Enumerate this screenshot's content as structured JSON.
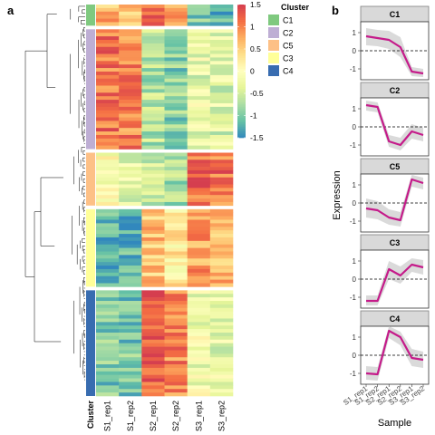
{
  "panel_labels": {
    "a": "a",
    "b": "b"
  },
  "colors": {
    "C1": "#7fc97f",
    "C2": "#beaed4",
    "C5": "#fdc086",
    "C3": "#ffff99",
    "C4": "#386cb0",
    "line": "#c51b8a",
    "ribbon": "#d3d3d3",
    "strip": "#d9d9d9",
    "strip_border": "#7f7f7f",
    "palette": [
      "#3288bd",
      "#66c2a5",
      "#abdda4",
      "#e6f598",
      "#ffffbf",
      "#fee08b",
      "#fdae61",
      "#f46d43",
      "#d53e4f"
    ]
  },
  "heatmap": {
    "cluster_column_label": "Cluster",
    "column_labels": [
      "S1_rep1",
      "S1_rep2",
      "S2_rep1",
      "S2_rep2",
      "S3_rep1",
      "S3_rep2"
    ],
    "legend": {
      "title": "Cluster",
      "entries": [
        {
          "name": "C1",
          "color_key": "C1"
        },
        {
          "name": "C2",
          "color_key": "C2"
        },
        {
          "name": "C5",
          "color_key": "C5"
        },
        {
          "name": "C3",
          "color_key": "C3"
        },
        {
          "name": "C4",
          "color_key": "C4"
        }
      ]
    },
    "colorbar": {
      "ticks": [
        "1.5",
        "1",
        "0.5",
        "0",
        "-0.5",
        "-1",
        "-1.5"
      ],
      "min": -1.5,
      "max": 1.5
    }
  },
  "line_panel": {
    "ylabel": "Expression",
    "xlabel": "Sample"
  },
  "chart_data": [
    {
      "type": "heatmap",
      "x": [
        "S1_rep1",
        "S1_rep2",
        "S2_rep1",
        "S2_rep2",
        "S3_rep1",
        "S3_rep2"
      ],
      "value_range": [
        -1.5,
        1.5
      ],
      "blocks": [
        {
          "cluster": "C1",
          "rows": 6,
          "means": [
            0.7,
            0.5,
            1.1,
            0.8,
            -1.0,
            -1.2
          ]
        },
        {
          "cluster": "C2",
          "rows": 34,
          "means": [
            1.1,
            1.0,
            -0.7,
            -0.9,
            -0.3,
            -0.4
          ]
        },
        {
          "cluster": "C5",
          "rows": 15,
          "means": [
            -0.1,
            -0.3,
            -0.6,
            -0.8,
            1.2,
            1.1
          ]
        },
        {
          "cluster": "C3",
          "rows": 22,
          "means": [
            -1.2,
            -1.2,
            0.6,
            0.2,
            0.8,
            0.7
          ]
        },
        {
          "cluster": "C4",
          "rows": 30,
          "means": [
            -1.0,
            -1.0,
            1.3,
            1.0,
            -0.2,
            -0.3
          ]
        }
      ]
    },
    {
      "type": "line",
      "categories": [
        "S1_rep1",
        "S1_rep2",
        "S2_rep1",
        "S2_rep2",
        "S3_rep1",
        "S3_rep2"
      ],
      "ylim": [
        -1.6,
        1.6
      ],
      "yticks": [
        "1",
        "0",
        "-1"
      ],
      "reference_line": 0,
      "panels": [
        {
          "title": "C1",
          "values": [
            0.8,
            0.7,
            0.6,
            0.2,
            -1.15,
            -1.25
          ],
          "lower": [
            0.3,
            0.25,
            0.1,
            -0.35,
            -1.4,
            -1.45
          ],
          "upper": [
            1.25,
            1.15,
            1.1,
            0.75,
            -0.9,
            -1.0
          ]
        },
        {
          "title": "C2",
          "values": [
            1.2,
            1.1,
            -0.8,
            -1.0,
            -0.25,
            -0.45
          ],
          "lower": [
            0.9,
            0.8,
            -1.1,
            -1.3,
            -0.65,
            -0.8
          ],
          "upper": [
            1.45,
            1.35,
            -0.45,
            -0.6,
            0.15,
            -0.05
          ]
        },
        {
          "title": "C5",
          "values": [
            -0.3,
            -0.4,
            -0.8,
            -0.95,
            1.3,
            1.1
          ],
          "lower": [
            -0.8,
            -0.9,
            -1.2,
            -1.3,
            0.9,
            0.75
          ],
          "upper": [
            0.25,
            0.1,
            -0.35,
            -0.5,
            1.55,
            1.4
          ]
        },
        {
          "title": "C3",
          "values": [
            -1.2,
            -1.2,
            0.55,
            0.2,
            0.8,
            0.65
          ],
          "lower": [
            -1.45,
            -1.45,
            0.0,
            -0.25,
            0.4,
            0.25
          ],
          "upper": [
            -0.9,
            -0.9,
            1.0,
            0.7,
            1.15,
            1.05
          ]
        },
        {
          "title": "C4",
          "values": [
            -1.0,
            -1.05,
            1.35,
            1.0,
            -0.15,
            -0.25
          ],
          "lower": [
            -1.35,
            -1.4,
            0.95,
            0.55,
            -0.6,
            -0.7
          ],
          "upper": [
            -0.6,
            -0.65,
            1.6,
            1.3,
            0.35,
            0.2
          ]
        }
      ]
    }
  ]
}
